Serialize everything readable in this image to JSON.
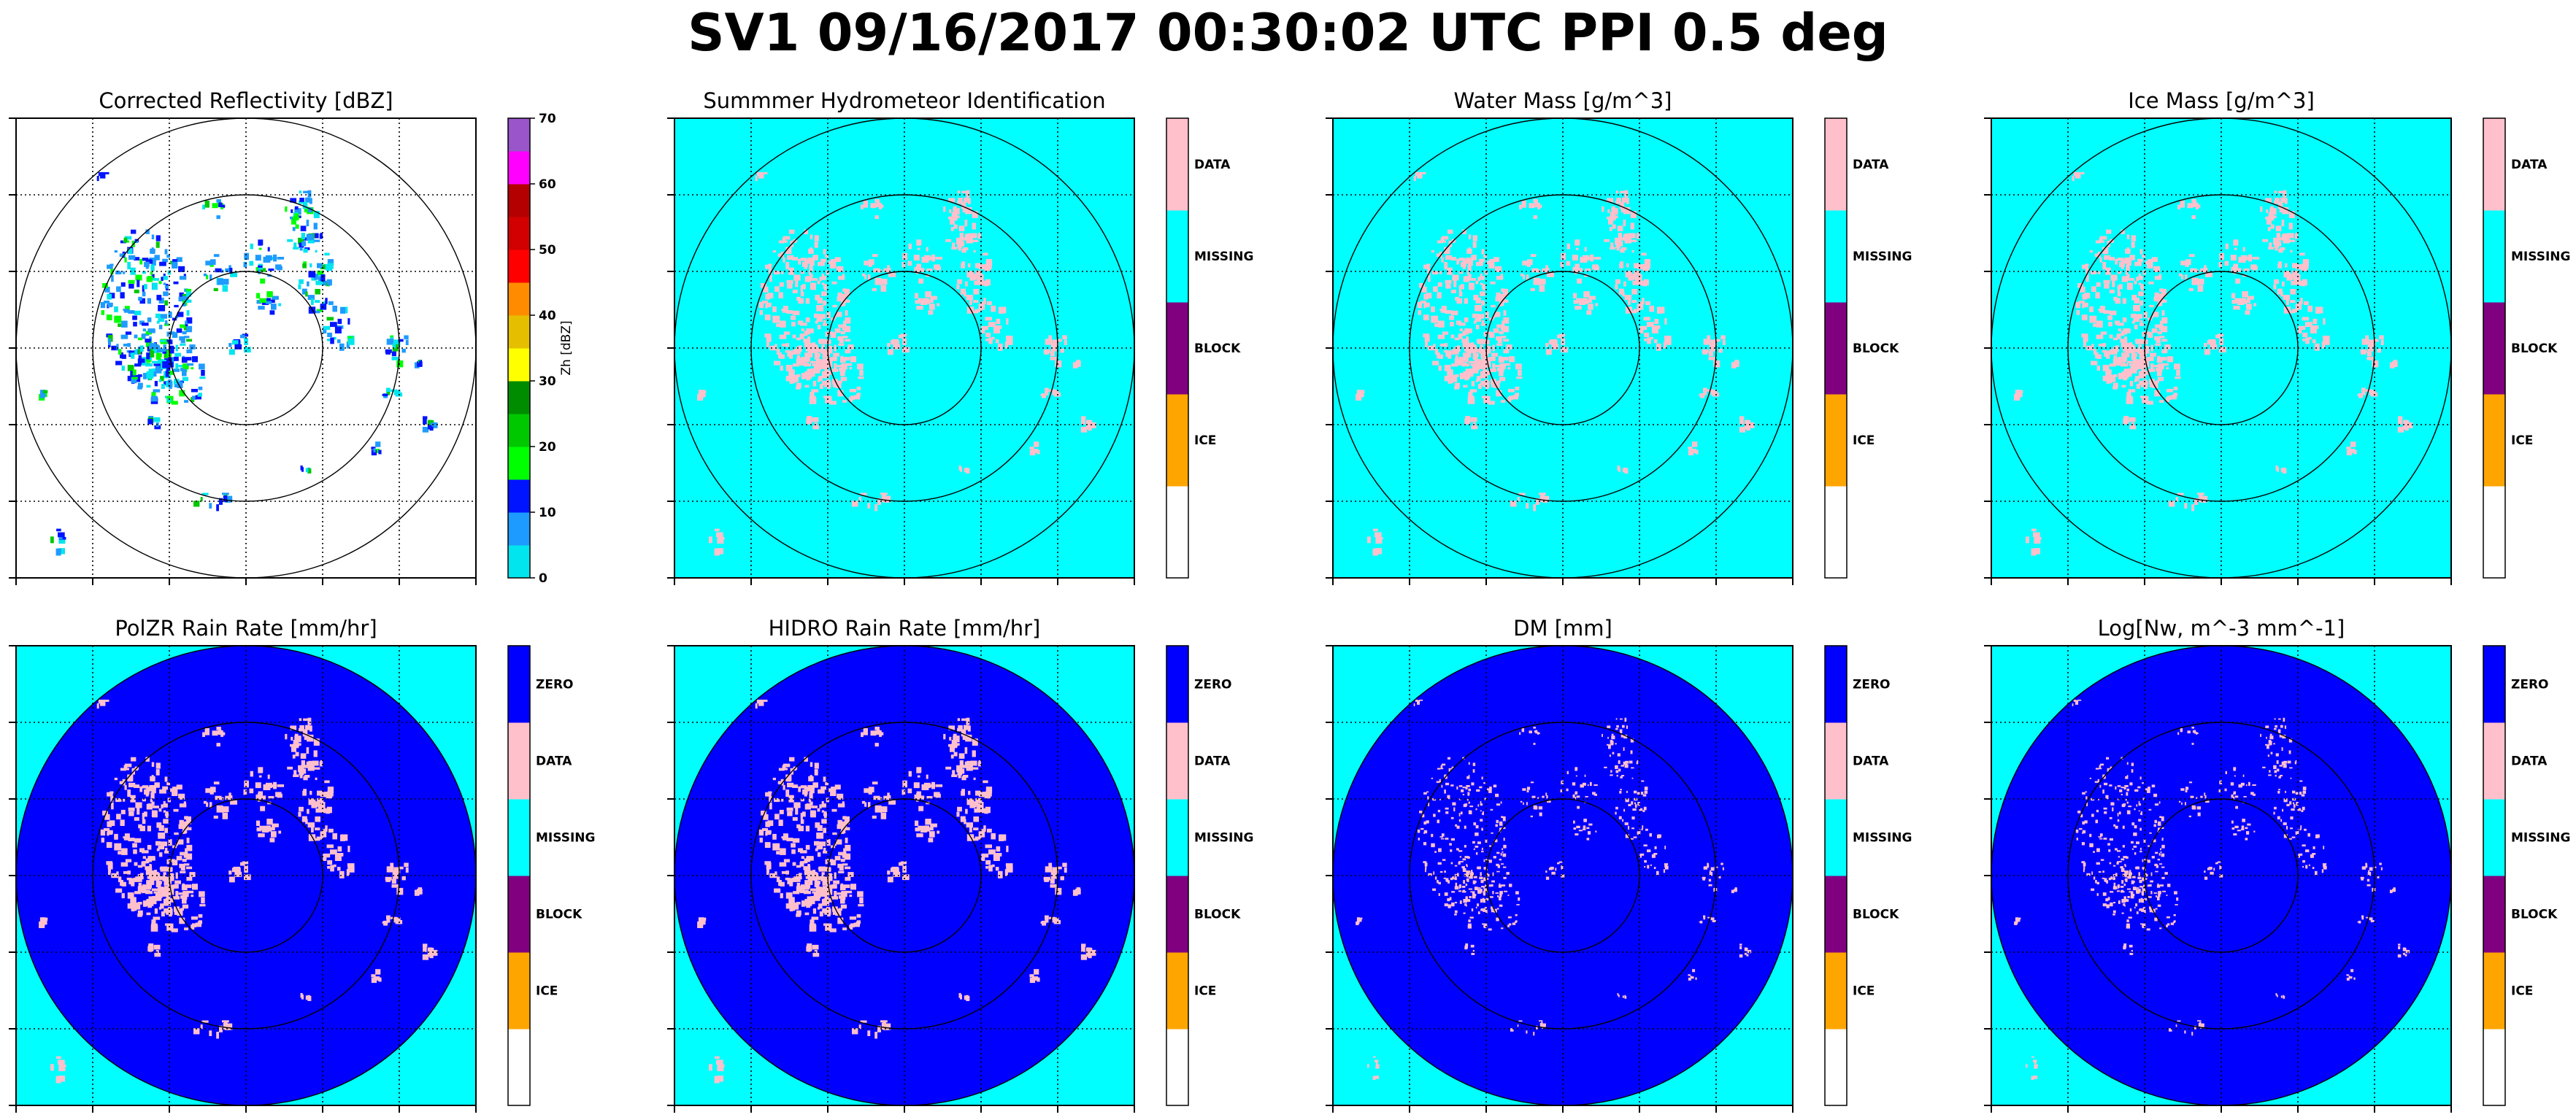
{
  "title": "SV1 09/16/2017 00:30:02 UTC PPI 0.5 deg",
  "colors": {
    "zero": "#0000ff",
    "data": "#ffc0cb",
    "missing": "#00ffff",
    "block": "#800080",
    "ice": "#ffa500",
    "blank": "#ffffff"
  },
  "chart_data": [
    {
      "type": "heatmap",
      "title": "Corrected Reflectivity [dBZ]",
      "background": "none",
      "colorbar": {
        "kind": "continuous",
        "label": "Zh [dBZ]",
        "ticks": [
          "0",
          "10",
          "20",
          "30",
          "40",
          "50",
          "60",
          "70"
        ],
        "colors": [
          "#00e5ee",
          "#1e9bff",
          "#0014ff",
          "#00ff00",
          "#00c800",
          "#008c00",
          "#ffff00",
          "#e6be00",
          "#ff8c00",
          "#ff0000",
          "#d20000",
          "#b40000",
          "#ff00ff",
          "#9955c9"
        ]
      }
    },
    {
      "type": "heatmap",
      "title": "Summmer Hydrometeor Identification",
      "background": "missing",
      "colorbar": {
        "kind": "categorical",
        "categories": [
          "",
          "ICE",
          "BLOCK",
          "MISSING",
          "DATA"
        ]
      }
    },
    {
      "type": "heatmap",
      "title": "Water Mass [g/m^3]",
      "background": "missing",
      "colorbar": {
        "kind": "categorical",
        "categories": [
          "",
          "ICE",
          "BLOCK",
          "MISSING",
          "DATA"
        ]
      }
    },
    {
      "type": "heatmap",
      "title": "Ice Mass [g/m^3]",
      "background": "missing",
      "colorbar": {
        "kind": "categorical",
        "categories": [
          "",
          "ICE",
          "BLOCK",
          "MISSING",
          "DATA"
        ]
      }
    },
    {
      "type": "heatmap",
      "title": "PolZR Rain Rate [mm/hr]",
      "background": "zero-disk",
      "colorbar": {
        "kind": "categorical",
        "categories": [
          "",
          "ICE",
          "BLOCK",
          "MISSING",
          "DATA",
          "ZERO"
        ]
      }
    },
    {
      "type": "heatmap",
      "title": "HIDRO Rain Rate [mm/hr]",
      "background": "zero-disk",
      "colorbar": {
        "kind": "categorical",
        "categories": [
          "",
          "ICE",
          "BLOCK",
          "MISSING",
          "DATA",
          "ZERO"
        ]
      }
    },
    {
      "type": "heatmap",
      "title": "DM [mm]",
      "background": "zero-disk",
      "colorbar": {
        "kind": "categorical",
        "categories": [
          "",
          "ICE",
          "BLOCK",
          "MISSING",
          "DATA",
          "ZERO"
        ]
      }
    },
    {
      "type": "heatmap",
      "title": "Log[Nw, m^-3 mm^-1]",
      "background": "zero-disk",
      "colorbar": {
        "kind": "categorical",
        "categories": [
          "",
          "ICE",
          "BLOCK",
          "MISSING",
          "DATA",
          "ZERO"
        ]
      }
    }
  ]
}
